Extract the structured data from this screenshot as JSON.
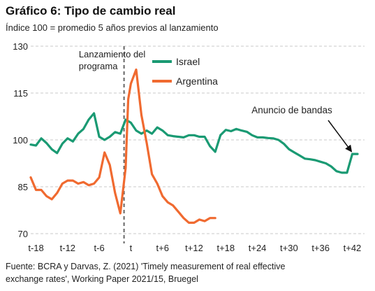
{
  "title": "Gráfico 6: Tipo de cambio real",
  "subtitle": "Índice 100 = promedio 5 años previos al lanzamiento",
  "source_line1": "Fuente: BCRA y Darvas, Z. (2021) 'Timely measurement of real effective",
  "source_line2": "exchange rates', Working Paper 2021/15, Bruegel",
  "chart_data": {
    "type": "line",
    "x_tick_labels": [
      "t-18",
      "t-12",
      "t-6",
      "t",
      "t+6",
      "t+12",
      "t+18",
      "t+24",
      "t+30",
      "t+36",
      "t+42"
    ],
    "x_tick_values": [
      -18,
      -12,
      -6,
      0,
      6,
      12,
      18,
      24,
      30,
      36,
      42
    ],
    "xlim": [
      -19,
      43
    ],
    "ylim": [
      70,
      130
    ],
    "y_ticks": [
      70,
      85,
      100,
      115,
      130
    ],
    "grid": "horizontal-dashed",
    "legend": "top-center",
    "colors": {
      "israel": "#1a9a73",
      "argentina": "#f06a30",
      "annotation": "#111111",
      "launch_line": "#666666"
    },
    "series": [
      {
        "name": "Israel",
        "color": "#1a9a73",
        "x": [
          -19,
          -18,
          -17,
          -16,
          -15,
          -14,
          -13,
          -12,
          -11,
          -10,
          -9,
          -8,
          -7,
          -6,
          -5,
          -4,
          -3,
          -2,
          -1,
          0,
          1,
          2,
          3,
          4,
          5,
          6,
          7,
          8,
          9,
          10,
          11,
          12,
          13,
          14,
          15,
          16,
          17,
          18,
          19,
          20,
          21,
          22,
          23,
          24,
          25,
          26,
          27,
          28,
          29,
          30,
          31,
          32,
          33,
          34,
          35,
          36,
          37,
          38,
          39,
          40,
          41,
          42,
          43
        ],
        "values": [
          98.5,
          98.2,
          100.5,
          99,
          97,
          95.8,
          98.8,
          100.5,
          99.5,
          102,
          103.5,
          106.5,
          108.5,
          101,
          100,
          101,
          102.5,
          102,
          106.5,
          105.5,
          103,
          102,
          103,
          102,
          104,
          103,
          101.5,
          101.2,
          101,
          100.8,
          101.5,
          101.5,
          101,
          101,
          98,
          96.2,
          101.5,
          103.2,
          102.8,
          103.5,
          103,
          102.6,
          101.5,
          100.8,
          100.8,
          100.6,
          100.5,
          100,
          98.8,
          97,
          96,
          95,
          94,
          93.8,
          93.5,
          93,
          92.5,
          91.5,
          90,
          89.5,
          89.5,
          95.5,
          95.5
        ]
      },
      {
        "name": "Argentina",
        "color": "#f06a30",
        "x": [
          -19,
          -18,
          -17,
          -16,
          -15,
          -14,
          -13,
          -12,
          -11,
          -10,
          -9,
          -8,
          -7,
          -6,
          -5,
          -4,
          -3,
          -2,
          -1,
          -0.5,
          0,
          1,
          2,
          3,
          4,
          5,
          6,
          7,
          8,
          9,
          10,
          11,
          12,
          13,
          14,
          15,
          16
        ],
        "values": [
          88,
          84,
          84,
          82,
          81,
          83,
          86,
          87,
          87,
          86,
          86.5,
          85.5,
          86,
          88,
          96,
          92,
          83,
          76.5,
          91,
          113,
          118,
          122.5,
          108,
          99,
          89,
          86,
          82,
          80,
          79,
          77,
          75,
          73.5,
          73.5,
          74.5,
          74,
          75,
          75
        ]
      }
    ],
    "launch_line": {
      "x": -1.3,
      "label_line1": "Lanzamiento del",
      "label_line2": "programa"
    },
    "annotation": {
      "text": "Anuncio de bandas",
      "target_x": 41.8,
      "target_y": 95.5
    }
  }
}
